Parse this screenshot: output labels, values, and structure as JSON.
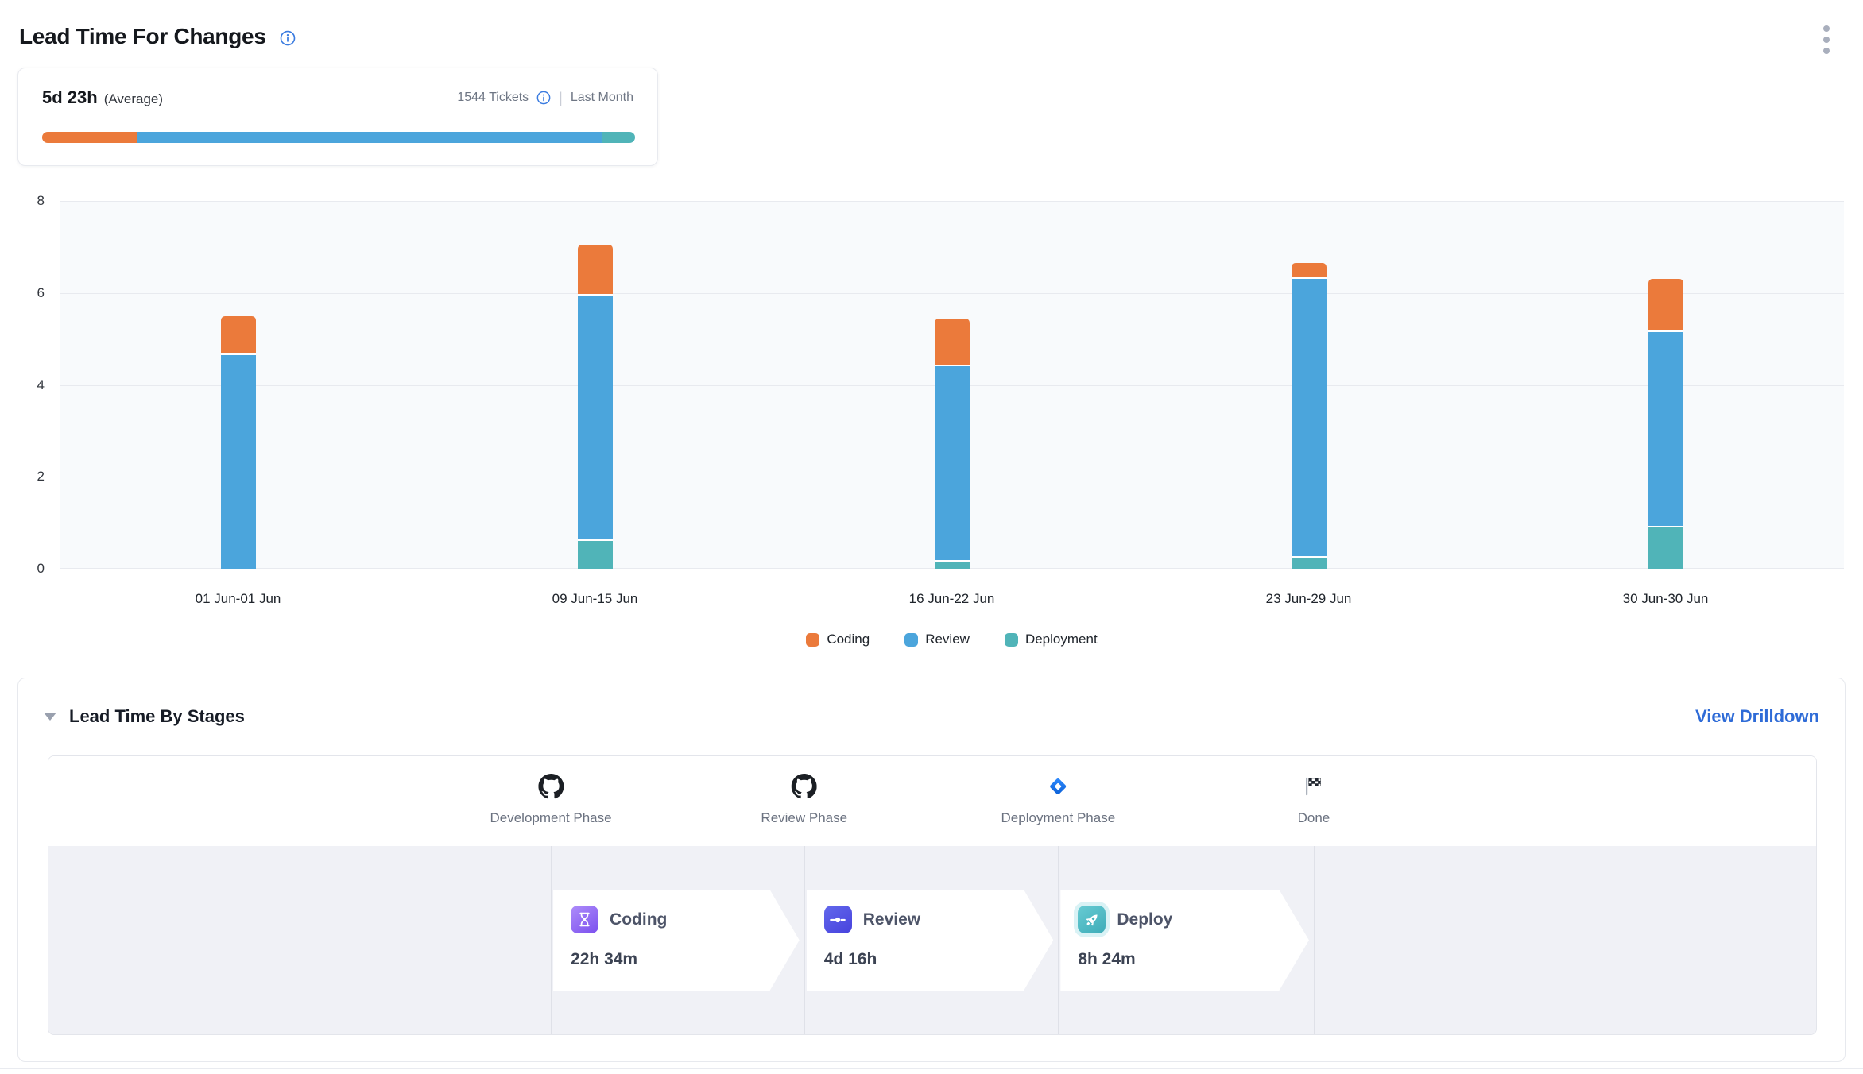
{
  "header": {
    "title": "Lead Time For Changes"
  },
  "summary": {
    "value": "5d 23h",
    "value_suffix": "(Average)",
    "tickets": "1544 Tickets",
    "separator": "|",
    "period": "Last Month",
    "bar_segments": [
      {
        "name": "Coding",
        "color": "#EB7A3B",
        "percent": 16
      },
      {
        "name": "Review",
        "color": "#4BA5DC",
        "percent": 78.5
      },
      {
        "name": "Deployment",
        "color": "#50B4B8",
        "percent": 5.5
      }
    ]
  },
  "chart_data": {
    "type": "bar",
    "stacked": true,
    "title": "Lead Time For Changes",
    "xlabel": "",
    "ylabel": "",
    "categories": [
      "01 Jun-01 Jun",
      "09 Jun-15 Jun",
      "16 Jun-22 Jun",
      "23 Jun-29 Jun",
      "30 Jun-30 Jun"
    ],
    "series": [
      {
        "name": "Coding",
        "color": "#EB7A3B",
        "values": [
          0.85,
          1.1,
          1.05,
          0.35,
          1.15
        ]
      },
      {
        "name": "Review",
        "color": "#4BA5DC",
        "values": [
          4.65,
          5.35,
          4.25,
          6.05,
          4.25
        ]
      },
      {
        "name": "Deployment",
        "color": "#50B4B8",
        "values": [
          0,
          0.6,
          0.15,
          0.25,
          0.9
        ]
      }
    ],
    "totals": [
      5.5,
      7.05,
      5.45,
      6.65,
      6.3
    ],
    "ylim": [
      0,
      8
    ],
    "yticks": [
      0,
      2,
      4,
      6,
      8
    ],
    "grid": true,
    "legend_position": "bottom"
  },
  "stages": {
    "title": "Lead Time By Stages",
    "drilldown_label": "View Drilldown",
    "phases": [
      {
        "label": "Development Phase",
        "icon": "github-icon"
      },
      {
        "label": "Review Phase",
        "icon": "github-icon"
      },
      {
        "label": "Deployment Phase",
        "icon": "jira-icon"
      },
      {
        "label": "Done",
        "icon": "checkered-flag-icon"
      }
    ],
    "cards": [
      {
        "title": "Coding",
        "duration": "22h 34m",
        "icon": "hourglass-icon"
      },
      {
        "title": "Review",
        "duration": "4d 16h",
        "icon": "commit-icon"
      },
      {
        "title": "Deploy",
        "duration": "8h 24m",
        "icon": "rocket-icon"
      }
    ]
  }
}
